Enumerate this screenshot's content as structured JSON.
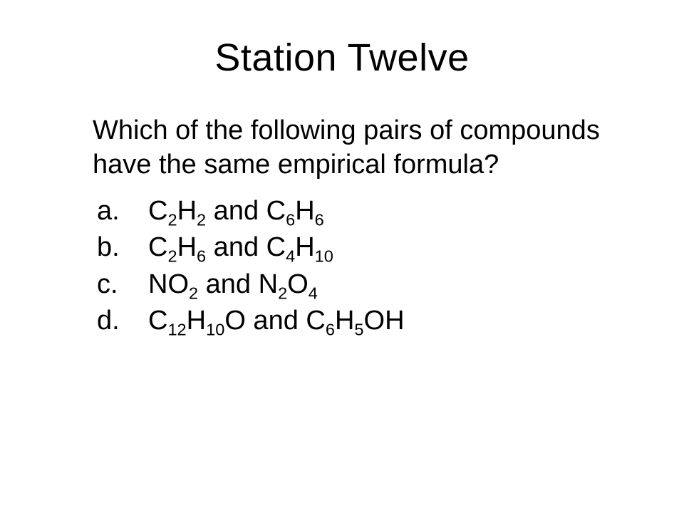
{
  "title": "Station Twelve",
  "question": "Which of the following pairs of compounds have the same empirical formula?",
  "title_fontsize": 54,
  "body_fontsize": 38,
  "text_color": "#000000",
  "background_color": "#ffffff",
  "font_family": "Arial",
  "options": [
    {
      "label": "a.",
      "segments": [
        {
          "t": "C"
        },
        {
          "t": "2",
          "sub": true
        },
        {
          "t": "H"
        },
        {
          "t": "2",
          "sub": true
        },
        {
          "t": " and C"
        },
        {
          "t": "6",
          "sub": true
        },
        {
          "t": "H"
        },
        {
          "t": "6",
          "sub": true
        }
      ]
    },
    {
      "label": "b.",
      "segments": [
        {
          "t": "C"
        },
        {
          "t": "2",
          "sub": true
        },
        {
          "t": "H"
        },
        {
          "t": "6",
          "sub": true
        },
        {
          "t": " and C"
        },
        {
          "t": "4",
          "sub": true
        },
        {
          "t": "H"
        },
        {
          "t": "10",
          "sub": true
        }
      ]
    },
    {
      "label": "c.",
      "segments": [
        {
          "t": "NO"
        },
        {
          "t": "2",
          "sub": true
        },
        {
          "t": " and N"
        },
        {
          "t": "2",
          "sub": true
        },
        {
          "t": "O"
        },
        {
          "t": "4",
          "sub": true
        }
      ]
    },
    {
      "label": "d.",
      "segments": [
        {
          "t": "C"
        },
        {
          "t": "12",
          "sub": true
        },
        {
          "t": "H"
        },
        {
          "t": "10",
          "sub": true
        },
        {
          "t": "O"
        },
        {
          "t": " and C"
        },
        {
          "t": "6",
          "sub": true
        },
        {
          "t": "H"
        },
        {
          "t": "5",
          "sub": true
        },
        {
          "t": "OH"
        }
      ]
    }
  ]
}
